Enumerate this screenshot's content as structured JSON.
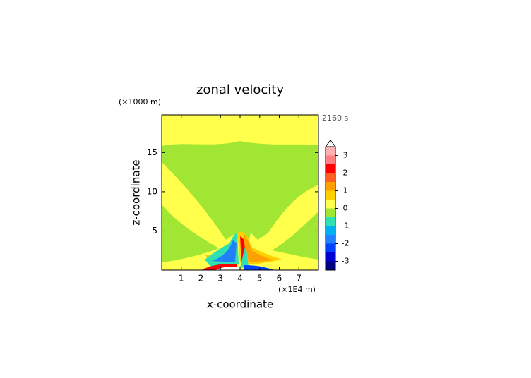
{
  "chart_data": {
    "type": "contour",
    "title": "zonal velocity",
    "x_label": "x-coordinate",
    "y_label": "z-coordinate",
    "x_unit": "(×1E4 m)",
    "y_unit": "(×1000 m)",
    "time_label": "2160 s",
    "xlim": [
      0,
      8
    ],
    "xticks": [
      1,
      2,
      3,
      4,
      5,
      6,
      7
    ],
    "ylim": [
      0,
      19.8
    ],
    "yticks": [
      5,
      10,
      15
    ],
    "levels": [
      -3.5,
      -3,
      -2.5,
      -2,
      -1.5,
      -1,
      -0.5,
      0,
      0.5,
      1,
      1.5,
      2,
      2.5,
      3,
      3.5
    ],
    "colors": [
      "#000080",
      "#0000d0",
      "#0040ff",
      "#2080ff",
      "#00b0f0",
      "#30e0b0",
      "#a0e632",
      "#ffff4c",
      "#ffd000",
      "#ffa000",
      "#ff6020",
      "#ff0000",
      "#ff8080",
      "#ffb0b0"
    ],
    "extend_color": "#ffffff",
    "colorbar_ticks": [
      -3,
      -2,
      -1,
      0,
      1,
      2,
      3
    ]
  }
}
